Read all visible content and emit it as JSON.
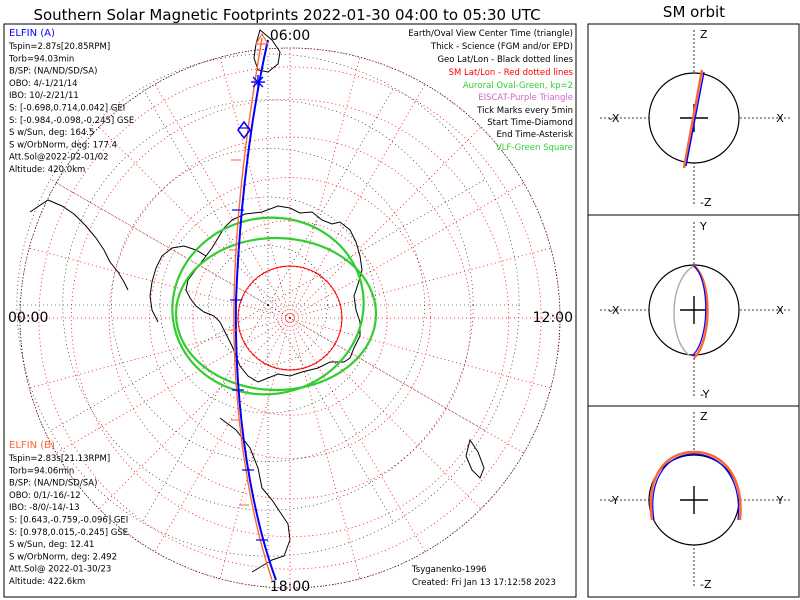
{
  "title": "Southern Solar Magnetic Footprints 2022-01-30 04:00 to 05:30 UTC",
  "orbit_title": "SM orbit",
  "mlt_labels": {
    "top": "06:00",
    "bottom": "18:00",
    "left": "00:00",
    "right": "12:00"
  },
  "legend": [
    {
      "text": "Earth/Oval View Center Time (triangle)",
      "color": "#000000"
    },
    {
      "text": "Thick - Science (FGM and/or EPD)",
      "color": "#000000"
    },
    {
      "text": "Geo Lat/Lon - Black dotted lines",
      "color": "#000000"
    },
    {
      "text": "SM Lat/Lon - Red dotted lines",
      "color": "#ff0000"
    },
    {
      "text": "Auroral Oval-Green, kp=2",
      "color": "#33cc33"
    },
    {
      "text": "EISCAT-Purple Triangle",
      "color": "#cc66cc"
    },
    {
      "text": "Tick Marks every 5min",
      "color": "#000000"
    },
    {
      "text": "Start Time-Diamond",
      "color": "#000000"
    },
    {
      "text": "End Time-Asterisk",
      "color": "#000000"
    },
    {
      "text": "VLF-Green Square",
      "color": "#33cc33"
    }
  ],
  "elfin_a": {
    "name": "ELFIN (A)",
    "color": "#0000ff",
    "lines": [
      "Tspin=2.87s[20.85RPM]",
      "Torb=94.03min",
      "B/SP: (NA/ND/SD/SA)",
      "OBO: 4/-1/21/14",
      "IBO: 10/-2/21/11",
      "S: [-0.698,0.714,0.042] GEI",
      "S: [-0.984,-0.098,-0.245] GSE",
      "S w/Sun, deg: 164.5",
      "S w/OrbNorm, deg: 177.4",
      "Att.Sol@2022-02-01/02",
      "Altitude: 420.0km"
    ]
  },
  "elfin_b": {
    "name": "ELFIN (B)",
    "color": "#ff6633",
    "lines": [
      "Tspin=2.83s[21.13RPM]",
      "Torb=94.06min",
      "B/SP: (NA/ND/SD/SA)",
      "OBO: 0/1/-16/-12",
      "IBO: -8/0/-14/-13",
      "S: [0.643,-0.759,-0.096] GEI",
      "S: [0.978,0.015,-0.245] GSE",
      "S w/Sun, deg: 12.41",
      "S w/OrbNorm, deg: 2.492",
      "Att.Sol@ 2022-01-30/23",
      "Altitude: 422.6km"
    ]
  },
  "model": "Tsyganenko-1996",
  "created": "Created: Fri Jan 13 17:12:58 2023",
  "orbit_panels": [
    {
      "top": "Z",
      "bottom": "-Z",
      "left": "-X",
      "right": "X"
    },
    {
      "top": "Y",
      "bottom": "-Y",
      "left": "-X",
      "right": "X"
    },
    {
      "top": "Z",
      "bottom": "-Z",
      "left": "-Y",
      "right": "Y"
    }
  ],
  "colors": {
    "elfin_a": "#0000ff",
    "elfin_b": "#ff6633",
    "oval": "#33cc33",
    "sm_grid": "#ff0000",
    "geo_grid": "#000000"
  }
}
